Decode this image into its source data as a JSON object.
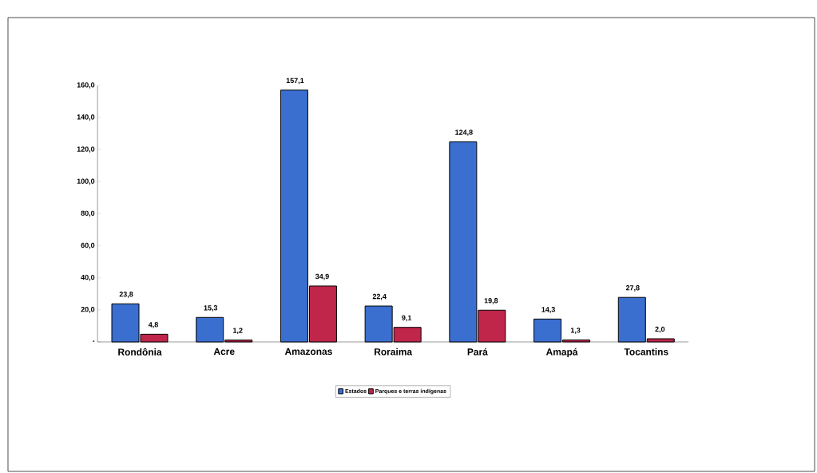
{
  "chart_data": {
    "type": "bar",
    "categories": [
      "Rondônia",
      "Acre",
      "Amazonas",
      "Roraima",
      "Pará",
      "Amapá",
      "Tocantins"
    ],
    "series": [
      {
        "name": "Estados",
        "color": "#3a6fd0",
        "values": [
          23.8,
          15.3,
          157.1,
          22.4,
          124.8,
          14.3,
          27.8
        ],
        "value_labels": [
          "23,8",
          "15,3",
          "157,1",
          "22,4",
          "124,8",
          "14,3",
          "27,8"
        ]
      },
      {
        "name": "Parques e terras indígenas",
        "color": "#c0254a",
        "values": [
          4.8,
          1.2,
          34.9,
          9.1,
          19.8,
          1.3,
          2.0
        ],
        "value_labels": [
          "4,8",
          "1,2",
          "34,9",
          "9,1",
          "19,8",
          "1,3",
          "2,0"
        ]
      }
    ],
    "ylim": [
      0,
      160
    ],
    "yticks": [
      {
        "value": 0,
        "label": "-"
      },
      {
        "value": 20,
        "label": "20,0"
      },
      {
        "value": 40,
        "label": "40,0"
      },
      {
        "value": 60,
        "label": "60,0"
      },
      {
        "value": 80,
        "label": "80,0"
      },
      {
        "value": 100,
        "label": "100,0"
      },
      {
        "value": 120,
        "label": "120,0"
      },
      {
        "value": 140,
        "label": "140,0"
      },
      {
        "value": 160,
        "label": "160,0"
      }
    ],
    "legend": "bottom",
    "grid": false
  }
}
